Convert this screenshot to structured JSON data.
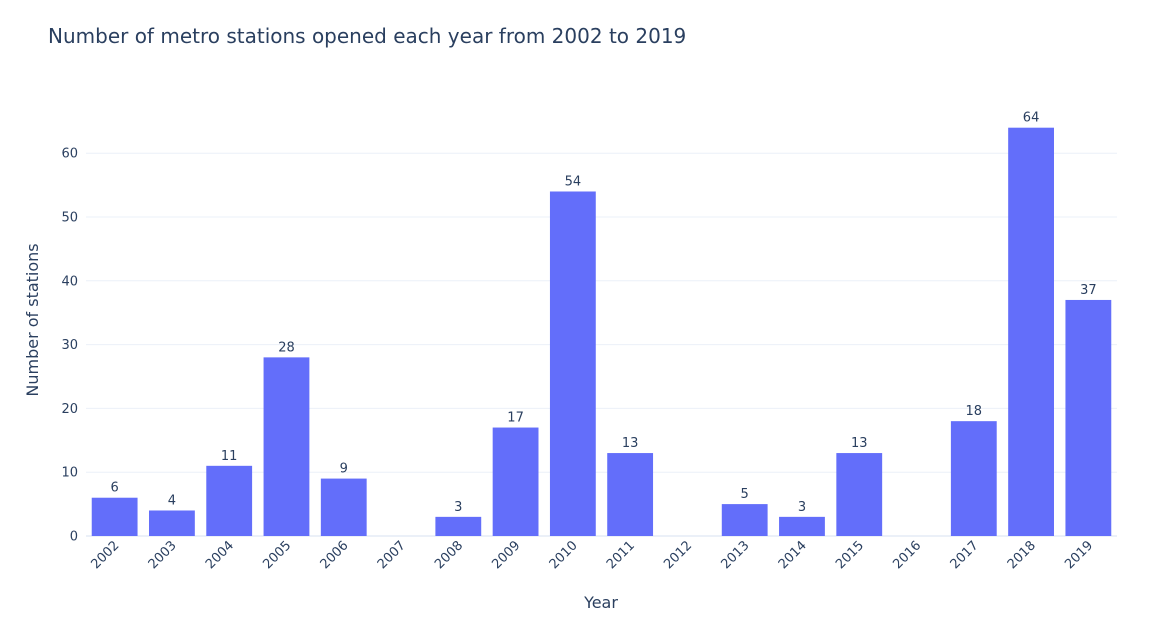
{
  "chart_data": {
    "type": "bar",
    "title": "Number of metro stations opened each year from 2002 to 2019",
    "xlabel": "Year",
    "ylabel": "Number of stations",
    "categories": [
      "2002",
      "2003",
      "2004",
      "2005",
      "2006",
      "2007",
      "2008",
      "2009",
      "2010",
      "2011",
      "2012",
      "2013",
      "2014",
      "2015",
      "2016",
      "2017",
      "2018",
      "2019"
    ],
    "values": [
      6,
      4,
      11,
      28,
      9,
      0,
      3,
      17,
      54,
      13,
      0,
      5,
      3,
      13,
      0,
      18,
      64,
      37
    ],
    "data_labels": [
      "6",
      "4",
      "11",
      "28",
      "9",
      "",
      "3",
      "17",
      "54",
      "13",
      "",
      "5",
      "3",
      "13",
      "",
      "18",
      "64",
      "37"
    ],
    "y_ticks": [
      0,
      10,
      20,
      30,
      40,
      50,
      60
    ],
    "ylim": [
      0,
      67.4
    ],
    "grid": true,
    "legend": "none",
    "bar_color": "#636efa"
  }
}
